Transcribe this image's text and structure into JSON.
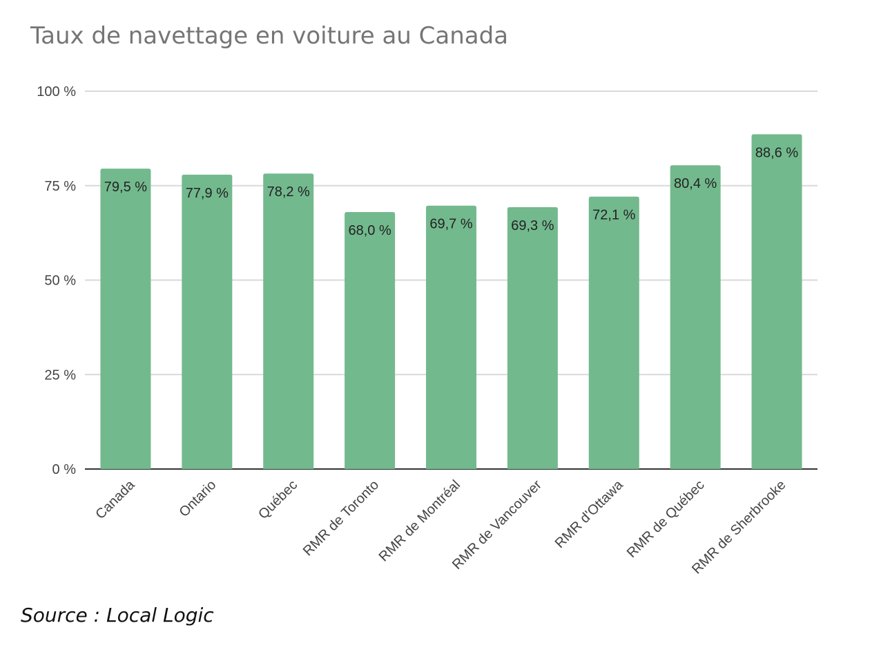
{
  "chart_data": {
    "type": "bar",
    "title": "Taux de navettage en voiture au Canada",
    "xlabel": "",
    "ylabel": "",
    "categories": [
      "Canada",
      "Ontario",
      "Québec",
      "RMR de Toronto",
      "RMR de Montréal",
      "RMR de Vancouver",
      "RMR d'Ottawa",
      "RMR de Québec",
      "RMR de Sherbrooke"
    ],
    "values": [
      79.5,
      77.9,
      78.2,
      68.0,
      69.7,
      69.3,
      72.1,
      80.4,
      88.6
    ],
    "data_labels": [
      "79,5 %",
      "77,9 %",
      "78,2 %",
      "68,0 %",
      "69,7 %",
      "69,3 %",
      "72,1 %",
      "80,4 %",
      "88,6 %"
    ],
    "ylim": [
      0,
      100
    ],
    "yticks": [
      0,
      25,
      50,
      75,
      100
    ],
    "ytick_labels": [
      "0 %",
      "25 %",
      "50 %",
      "75 %",
      "100 %"
    ],
    "grid": true,
    "legend": "none",
    "bar_color": "#73b98e"
  },
  "source": "Source : Local Logic"
}
